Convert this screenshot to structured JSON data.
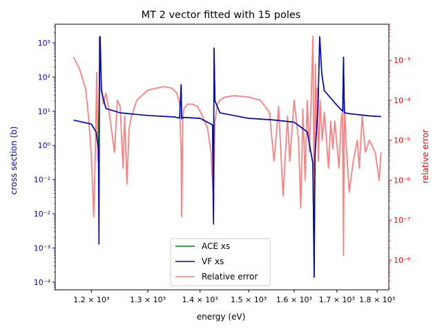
{
  "chart_data": {
    "type": "line",
    "title": "MT 2 vector fitted with 15 poles",
    "xlabel": "energy (eV)",
    "ylabel_left": "cross section (b)",
    "ylabel_right": "relative error",
    "x_scale": "log",
    "y_left_scale": "log",
    "y_right_scale": "log",
    "xlim": [
      1140,
      1830
    ],
    "ylim_left": [
      6e-05,
      3500
    ],
    "ylim_right": [
      1.8e-09,
      0.008
    ],
    "x_ticks": [
      {
        "value": 1200,
        "label": "1.2 × 10³"
      },
      {
        "value": 1300,
        "label": "1.3 × 10³"
      },
      {
        "value": 1400,
        "label": "1.4 × 10³"
      },
      {
        "value": 1500,
        "label": "1.5 × 10³"
      },
      {
        "value": 1600,
        "label": "1.6 × 10³"
      },
      {
        "value": 1700,
        "label": "1.7 × 10³"
      },
      {
        "value": 1800,
        "label": "1.8 × 10³"
      }
    ],
    "y_left_ticks": [
      {
        "value": 0.0001,
        "label": "10⁻⁴"
      },
      {
        "value": 0.001,
        "label": "10⁻³"
      },
      {
        "value": 0.01,
        "label": "10⁻²"
      },
      {
        "value": 0.1,
        "label": "10⁻¹"
      },
      {
        "value": 1,
        "label": "10⁰"
      },
      {
        "value": 10,
        "label": "10¹"
      },
      {
        "value": 100,
        "label": "10²"
      },
      {
        "value": 1000,
        "label": "10³"
      }
    ],
    "y_right_ticks": [
      {
        "value": 1e-08,
        "label": "10⁻⁸"
      },
      {
        "value": 1e-07,
        "label": "10⁻⁷"
      },
      {
        "value": 1e-06,
        "label": "10⁻⁶"
      },
      {
        "value": 1e-05,
        "label": "10⁻⁵"
      },
      {
        "value": 0.0001,
        "label": "10⁻⁴"
      },
      {
        "value": 0.001,
        "label": "10⁻³"
      }
    ],
    "legend_position": "lower-center",
    "series": [
      {
        "name": "ACE xs",
        "color": "#008000",
        "axis": "left",
        "x": [
          1170,
          1200,
          1208,
          1212,
          1215,
          1217,
          1225,
          1250,
          1300,
          1350,
          1360,
          1363,
          1364,
          1366,
          1400,
          1425,
          1427,
          1428,
          1430,
          1440,
          1500,
          1550,
          1600,
          1630,
          1643,
          1646,
          1648,
          1651,
          1655,
          1659,
          1664,
          1670,
          1700,
          1714,
          1716,
          1718,
          1730,
          1780,
          1810
        ],
        "values": [
          5.5,
          4.2,
          2.5,
          0.8,
          1500,
          40,
          12,
          9,
          7.5,
          6.8,
          6.3,
          60,
          6.0,
          6.6,
          6.2,
          4.0,
          0.008,
          700,
          20,
          9,
          6.2,
          5.6,
          4.8,
          2.5,
          0.3,
          0.00014,
          0.5,
          2.2,
          12,
          1500,
          120,
          40,
          15,
          10,
          380,
          9,
          8.5,
          7.3,
          7.0
        ]
      },
      {
        "name": "VF xs",
        "color": "#0000cc",
        "axis": "left",
        "x": [
          1170,
          1200,
          1208,
          1212,
          1213,
          1214,
          1215,
          1217,
          1225,
          1250,
          1300,
          1350,
          1360,
          1363,
          1364,
          1366,
          1400,
          1425,
          1427,
          1428,
          1430,
          1440,
          1500,
          1550,
          1600,
          1630,
          1643,
          1646,
          1648,
          1651,
          1655,
          1659,
          1664,
          1670,
          1700,
          1714,
          1716,
          1718,
          1730,
          1780,
          1810
        ],
        "values": [
          5.5,
          4.2,
          2.5,
          0.8,
          0.0013,
          1500,
          1500,
          40,
          12,
          9,
          7.5,
          6.8,
          6.3,
          60,
          6.0,
          6.6,
          6.2,
          4.0,
          0.005,
          700,
          20,
          9,
          6.2,
          5.6,
          4.8,
          2.5,
          0.3,
          0.00014,
          0.5,
          2.2,
          12,
          1500,
          120,
          40,
          15,
          10,
          380,
          9,
          8.5,
          7.3,
          7.0
        ]
      },
      {
        "name": "Relative error",
        "color": "#ff7f7f",
        "axis": "right",
        "x": [
          1170,
          1180,
          1190,
          1195,
          1200,
          1204,
          1207,
          1209,
          1211,
          1213,
          1215,
          1217,
          1220,
          1225,
          1230,
          1240,
          1245,
          1250,
          1255,
          1258,
          1262,
          1266,
          1270,
          1280,
          1300,
          1330,
          1345,
          1355,
          1360,
          1363,
          1364,
          1366,
          1368,
          1375,
          1385,
          1395,
          1405,
          1415,
          1422,
          1426,
          1427,
          1428,
          1430,
          1435,
          1440,
          1450,
          1470,
          1500,
          1525,
          1545,
          1555,
          1565,
          1575,
          1585,
          1590,
          1600,
          1610,
          1615,
          1620,
          1625,
          1630,
          1635,
          1640,
          1643,
          1645,
          1646,
          1647,
          1649,
          1651,
          1653,
          1656,
          1660,
          1665,
          1670,
          1675,
          1680,
          1685,
          1690,
          1695,
          1700,
          1705,
          1710,
          1713,
          1715,
          1716,
          1718,
          1722,
          1730,
          1740,
          1750,
          1755,
          1762,
          1770,
          1780,
          1795,
          1805,
          1810
        ],
        "values": [
          0.0012,
          0.0006,
          0.0002,
          4e-05,
          4e-06,
          1.2e-07,
          8e-06,
          0.0005,
          3e-06,
          0.0001,
          0.004,
          0.0003,
          8e-05,
          0.00015,
          6e-05,
          5e-06,
          0.0001,
          7e-05,
          2e-06,
          4e-05,
          8e-07,
          2e-05,
          4e-05,
          0.0001,
          0.00018,
          0.00022,
          0.0002,
          0.00015,
          8e-05,
          4e-06,
          1.2e-07,
          3e-05,
          6e-05,
          8e-05,
          8e-05,
          7e-05,
          4e-05,
          2e-05,
          5e-06,
          5e-07,
          1e-07,
          2e-06,
          3e-05,
          8e-05,
          0.0001,
          0.00012,
          0.00013,
          0.00012,
          0.0001,
          5e-05,
          3e-06,
          7e-05,
          4e-07,
          4e-05,
          3e-06,
          0.0001,
          1e-05,
          2e-07,
          6e-05,
          1e-06,
          0.0001,
          5e-06,
          0.0002,
          0.004,
          1e-05,
          4e-08,
          2e-06,
          0.0008,
          2e-05,
          0.0002,
          3e-06,
          0.0001,
          1e-05,
          5e-05,
          1e-05,
          2e-06,
          3e-05,
          6e-06,
          3e-05,
          8e-06,
          2e-06,
          3e-05,
          5e-05,
          1e-06,
          1.3e-08,
          0.0001,
          1e-05,
          5e-07,
          3e-06,
          1e-05,
          2e-06,
          4e-05,
          5e-06,
          1e-05,
          5e-06,
          1e-06,
          5e-06
        ]
      }
    ]
  }
}
